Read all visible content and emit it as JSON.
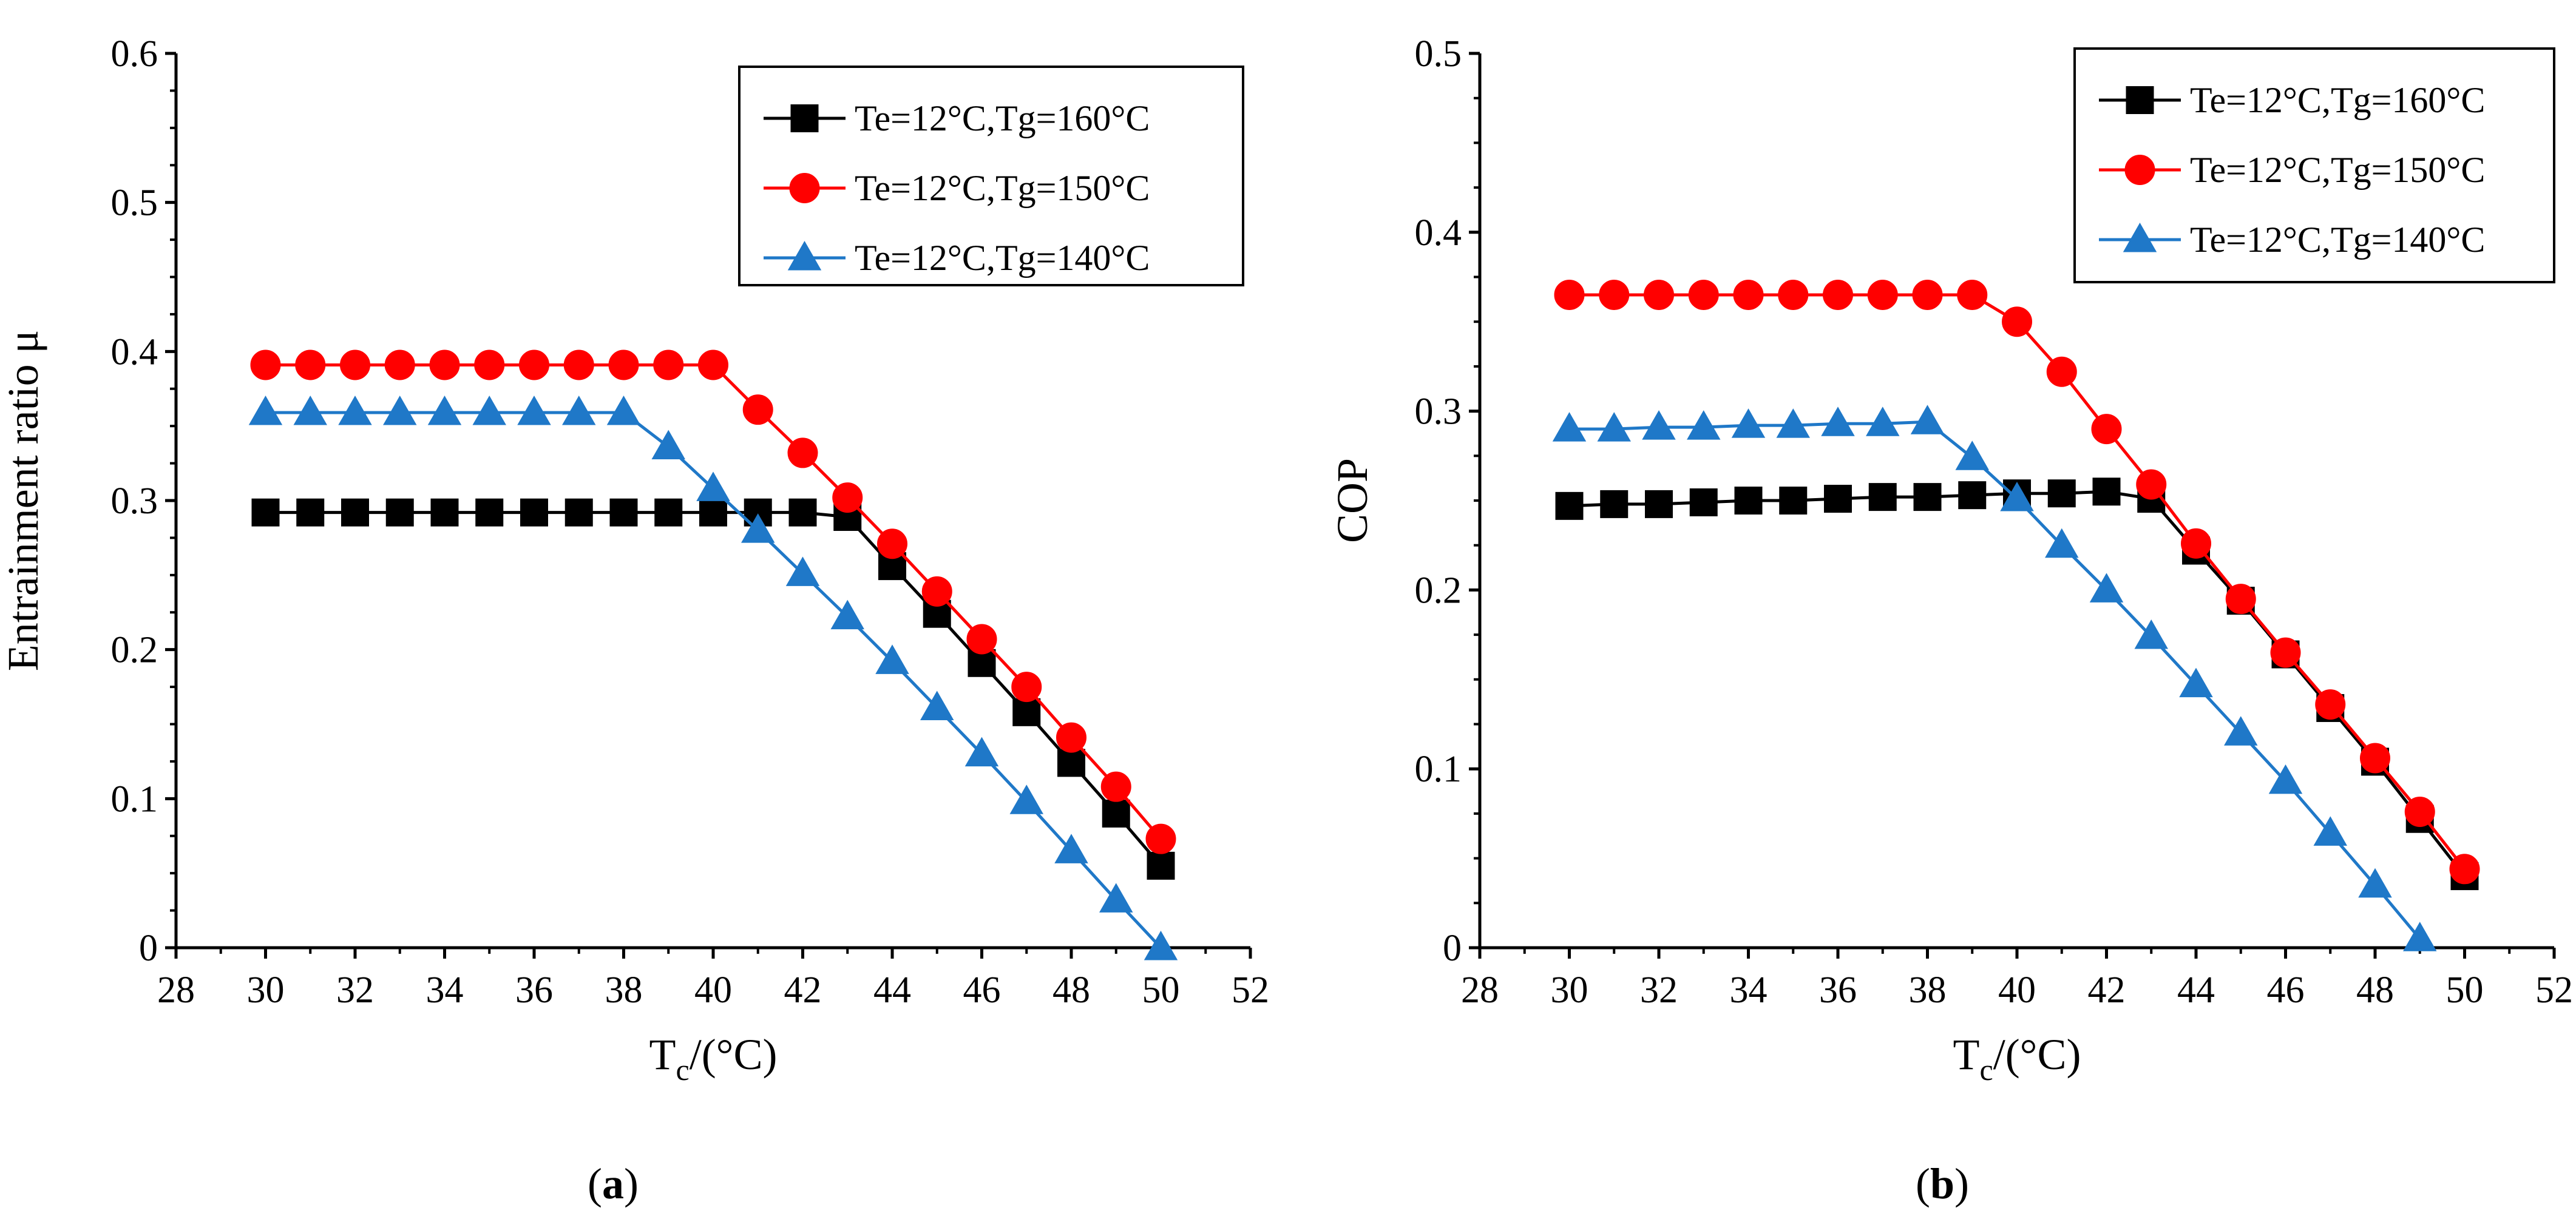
{
  "chart_data": [
    {
      "type": "line",
      "panel_label": "a",
      "caption_open": "(",
      "caption_close": ")",
      "title": "",
      "xlabel_main": "T",
      "xlabel_sub": "c",
      "xlabel_unit": "/(°C)",
      "ylabel": "Entrainment ratio μ",
      "xlim": [
        28,
        52
      ],
      "ylim": [
        0,
        0.6
      ],
      "xticks": [
        28,
        30,
        32,
        34,
        36,
        38,
        40,
        42,
        44,
        46,
        48,
        50,
        52
      ],
      "xtick_labels": [
        "28",
        "30",
        "32",
        "34",
        "36",
        "38",
        "40",
        "42",
        "44",
        "46",
        "48",
        "50",
        "52"
      ],
      "yticks": [
        0,
        0.1,
        0.2,
        0.3,
        0.4,
        0.5,
        0.6
      ],
      "ytick_labels": [
        "0",
        "0.1",
        "0.2",
        "0.3",
        "0.4",
        "0.5",
        "0.6"
      ],
      "legend_position": "top-right",
      "series": [
        {
          "name": "Te=12°C,Tg=160°C",
          "color": "#000000",
          "marker": "square",
          "x": [
            30,
            31,
            32,
            33,
            34,
            35,
            36,
            37,
            38,
            39,
            40,
            41,
            42,
            43,
            44,
            45,
            46,
            47,
            48,
            49,
            50
          ],
          "y": [
            0.292,
            0.292,
            0.292,
            0.292,
            0.292,
            0.292,
            0.292,
            0.292,
            0.292,
            0.292,
            0.292,
            0.292,
            0.292,
            0.289,
            0.256,
            0.224,
            0.191,
            0.158,
            0.124,
            0.09,
            0.055
          ]
        },
        {
          "name": "Te=12°C,Tg=150°C",
          "color": "#ff0000",
          "marker": "circle",
          "x": [
            30,
            31,
            32,
            33,
            34,
            35,
            36,
            37,
            38,
            39,
            40,
            41,
            42,
            43,
            44,
            45,
            46,
            47,
            48,
            49,
            50
          ],
          "y": [
            0.391,
            0.391,
            0.391,
            0.391,
            0.391,
            0.391,
            0.391,
            0.391,
            0.391,
            0.391,
            0.391,
            0.361,
            0.332,
            0.302,
            0.271,
            0.239,
            0.207,
            0.175,
            0.141,
            0.108,
            0.073
          ]
        },
        {
          "name": "Te=12°C,Tg=140°C",
          "color": "#1f78c8",
          "marker": "triangle",
          "x": [
            30,
            31,
            32,
            33,
            34,
            35,
            36,
            37,
            38,
            39,
            40,
            41,
            42,
            43,
            44,
            45,
            46,
            47,
            48,
            49,
            50
          ],
          "y": [
            0.359,
            0.359,
            0.359,
            0.359,
            0.359,
            0.359,
            0.359,
            0.359,
            0.359,
            0.336,
            0.308,
            0.28,
            0.251,
            0.222,
            0.192,
            0.161,
            0.13,
            0.098,
            0.065,
            0.032,
            0.0
          ]
        }
      ]
    },
    {
      "type": "line",
      "panel_label": "b",
      "caption_open": "(",
      "caption_close": ")",
      "title": "",
      "xlabel_main": "T",
      "xlabel_sub": "c",
      "xlabel_unit": "/(°C)",
      "ylabel": "COP",
      "xlim": [
        28,
        52
      ],
      "ylim": [
        0,
        0.5
      ],
      "xticks": [
        28,
        30,
        32,
        34,
        36,
        38,
        40,
        42,
        44,
        46,
        48,
        50,
        52
      ],
      "xtick_labels": [
        "28",
        "30",
        "32",
        "34",
        "36",
        "38",
        "40",
        "42",
        "44",
        "46",
        "48",
        "50",
        "52"
      ],
      "yticks": [
        0,
        0.1,
        0.2,
        0.3,
        0.4,
        0.5
      ],
      "ytick_labels": [
        "0",
        "0.1",
        "0.2",
        "0.3",
        "0.4",
        "0.5"
      ],
      "legend_position": "top-right",
      "series": [
        {
          "name": "Te=12°C,Tg=160°C",
          "color": "#000000",
          "marker": "square",
          "x": [
            30,
            31,
            32,
            33,
            34,
            35,
            36,
            37,
            38,
            39,
            40,
            41,
            42,
            43,
            44,
            45,
            46,
            47,
            48,
            49,
            50
          ],
          "y": [
            0.247,
            0.248,
            0.248,
            0.249,
            0.25,
            0.25,
            0.251,
            0.252,
            0.252,
            0.253,
            0.254,
            0.254,
            0.255,
            0.251,
            0.222,
            0.194,
            0.164,
            0.134,
            0.104,
            0.072,
            0.04
          ]
        },
        {
          "name": "Te=12°C,Tg=150°C",
          "color": "#ff0000",
          "marker": "circle",
          "x": [
            30,
            31,
            32,
            33,
            34,
            35,
            36,
            37,
            38,
            39,
            40,
            41,
            42,
            43,
            44,
            45,
            46,
            47,
            48,
            49,
            50
          ],
          "y": [
            0.365,
            0.365,
            0.365,
            0.365,
            0.365,
            0.365,
            0.365,
            0.365,
            0.365,
            0.365,
            0.35,
            0.322,
            0.29,
            0.259,
            0.226,
            0.195,
            0.165,
            0.136,
            0.106,
            0.076,
            0.044
          ]
        },
        {
          "name": "Te=12°C,Tg=140°C",
          "color": "#1f78c8",
          "marker": "triangle",
          "x": [
            30,
            31,
            32,
            33,
            34,
            35,
            36,
            37,
            38,
            39,
            40,
            41,
            42,
            43,
            44,
            45,
            46,
            47,
            48,
            49
          ],
          "y": [
            0.29,
            0.29,
            0.291,
            0.291,
            0.292,
            0.292,
            0.293,
            0.293,
            0.294,
            0.274,
            0.251,
            0.225,
            0.2,
            0.174,
            0.147,
            0.12,
            0.093,
            0.064,
            0.035,
            0.005
          ]
        }
      ]
    }
  ]
}
